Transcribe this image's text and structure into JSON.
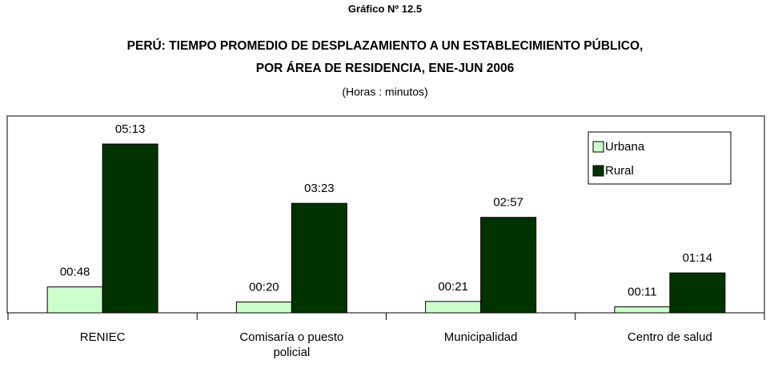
{
  "chart_data": {
    "type": "bar",
    "header": "Gráfico Nº 12.5",
    "title": [
      "PERÚ: TIEMPO PROMEDIO DE DESPLAZAMIENTO A UN ESTABLECIMIENTO PÚBLICO,",
      "POR ÁREA DE RESIDENCIA, ENE-JUN 2006"
    ],
    "subtitle": "(Horas : minutos)",
    "categories": [
      "RENIEC",
      "Comisaría o puesto policial",
      "Municipalidad",
      "Centro de salud"
    ],
    "series": [
      {
        "name": "Urbana",
        "color": "#ccffcc",
        "values": [
          48,
          20,
          21,
          11
        ],
        "value_labels": [
          "00:48",
          "00:20",
          "00:21",
          "00:11"
        ]
      },
      {
        "name": "Rural",
        "color": "#003300",
        "values": [
          313,
          203,
          177,
          74
        ],
        "value_labels": [
          "05:13",
          "03:23",
          "02:57",
          "01:14"
        ]
      }
    ],
    "ylim": [
      0,
      365
    ],
    "legend": "upper right"
  }
}
